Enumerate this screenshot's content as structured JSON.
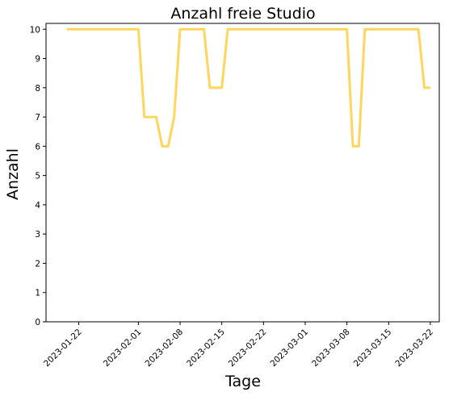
{
  "chart_data": {
    "type": "line",
    "title": "Anzahl freie Studio",
    "xlabel": "Tage",
    "ylabel": "Anzahl",
    "ylim": [
      0,
      10.2
    ],
    "xlim": [
      "2023-01-16T12:00",
      "2023-03-23T12:00"
    ],
    "x_ticks": [
      "2023-01-22",
      "2023-02-01",
      "2023-02-08",
      "2023-02-15",
      "2023-02-22",
      "2023-03-01",
      "2023-03-08",
      "2023-03-15",
      "2023-03-22"
    ],
    "y_ticks": [
      0,
      1,
      2,
      3,
      4,
      5,
      6,
      7,
      8,
      9,
      10
    ],
    "grid": false,
    "line_color": "#FFD65C",
    "series": [
      {
        "x": [
          "2023-01-20",
          "2023-01-21",
          "2023-01-22",
          "2023-01-23",
          "2023-01-24",
          "2023-01-25",
          "2023-01-26",
          "2023-01-27",
          "2023-01-28",
          "2023-01-29",
          "2023-01-30",
          "2023-01-31",
          "2023-02-01",
          "2023-02-02",
          "2023-02-03",
          "2023-02-04",
          "2023-02-05",
          "2023-02-06",
          "2023-02-07",
          "2023-02-08",
          "2023-02-09",
          "2023-02-10",
          "2023-02-11",
          "2023-02-12",
          "2023-02-13",
          "2023-02-14",
          "2023-02-15",
          "2023-02-16",
          "2023-02-17",
          "2023-02-18",
          "2023-02-19",
          "2023-02-20",
          "2023-02-21",
          "2023-02-22",
          "2023-02-23",
          "2023-02-24",
          "2023-02-25",
          "2023-02-26",
          "2023-02-27",
          "2023-02-28",
          "2023-03-01",
          "2023-03-02",
          "2023-03-03",
          "2023-03-04",
          "2023-03-05",
          "2023-03-06",
          "2023-03-07",
          "2023-03-08",
          "2023-03-09",
          "2023-03-10",
          "2023-03-11",
          "2023-03-12",
          "2023-03-13",
          "2023-03-14",
          "2023-03-15",
          "2023-03-16",
          "2023-03-17",
          "2023-03-18",
          "2023-03-19",
          "2023-03-20",
          "2023-03-21",
          "2023-03-22"
        ],
        "values": [
          10,
          10,
          10,
          10,
          10,
          10,
          10,
          10,
          10,
          10,
          10,
          10,
          10,
          7,
          7,
          7,
          6,
          6,
          7,
          10,
          10,
          10,
          10,
          10,
          8,
          8,
          8,
          10,
          10,
          10,
          10,
          10,
          10,
          10,
          10,
          10,
          10,
          10,
          10,
          10,
          10,
          10,
          10,
          10,
          10,
          10,
          10,
          10,
          6,
          6,
          10,
          10,
          10,
          10,
          10,
          10,
          10,
          10,
          10,
          10,
          8,
          8
        ]
      }
    ]
  }
}
